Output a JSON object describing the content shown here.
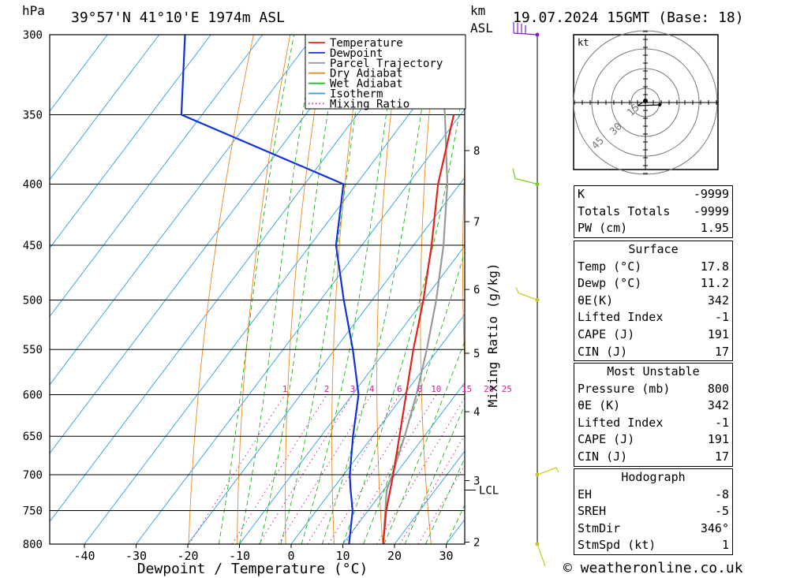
{
  "header": {
    "hpa_label": "hPa",
    "location": "39°57'N  41°10'E  1974m  ASL",
    "km_label": "km",
    "asl_label": "ASL",
    "datetime": "19.07.2024  15GMT  (Base: 18)"
  },
  "chart_data": {
    "type": "skew-t",
    "xlabel": "Dewpoint / Temperature (°C)",
    "ylabel": "hPa",
    "pressure_levels": [
      300,
      350,
      400,
      450,
      500,
      550,
      600,
      650,
      700,
      750,
      800
    ],
    "x_ticks": [
      -40,
      -30,
      -20,
      -10,
      0,
      10,
      20,
      30
    ],
    "km_ticks": [
      {
        "label": "8",
        "p": 375
      },
      {
        "label": "7",
        "p": 430
      },
      {
        "label": "6",
        "p": 490
      },
      {
        "label": "5",
        "p": 554
      },
      {
        "label": "4",
        "p": 620
      },
      {
        "label": "3",
        "p": 708
      },
      {
        "label": "2",
        "p": 797
      }
    ],
    "lcl": {
      "label": "LCL",
      "p": 721
    },
    "mixing_ratio_axis_label": "Mixing Ratio (g/kg)",
    "mixing_ratios": [
      {
        "label": "1",
        "v": 1
      },
      {
        "label": "2",
        "v": 2
      },
      {
        "label": "3",
        "v": 3
      },
      {
        "label": "4",
        "v": 4
      },
      {
        "label": "6",
        "v": 6
      },
      {
        "label": "8",
        "v": 8
      },
      {
        "label": "10",
        "v": 10
      },
      {
        "label": "15",
        "v": 15
      },
      {
        "label": "20",
        "v": 20
      },
      {
        "label": "25",
        "v": 25
      }
    ],
    "legend": {
      "placement": "top-right",
      "entries": [
        {
          "name": "Temperature",
          "color": "#e0221a",
          "style": "solid"
        },
        {
          "name": "Dewpoint",
          "color": "#1030d8",
          "style": "solid"
        },
        {
          "name": "Parcel Trajectory",
          "color": "#999999",
          "style": "solid"
        },
        {
          "name": "Dry Adiabat",
          "color": "#e88a20",
          "style": "solid"
        },
        {
          "name": "Wet Adiabat",
          "color": "#1ab51a",
          "style": "solid"
        },
        {
          "name": "Isotherm",
          "color": "#2a9ee0",
          "style": "solid"
        },
        {
          "name": "Mixing Ratio",
          "color": "#d0209a",
          "style": "dotted"
        }
      ]
    },
    "temperature": [
      {
        "p": 800,
        "t": 17.8
      },
      {
        "p": 750,
        "t": 13.5
      },
      {
        "p": 700,
        "t": 9.6
      },
      {
        "p": 650,
        "t": 5.2
      },
      {
        "p": 600,
        "t": 0.4
      },
      {
        "p": 550,
        "t": -4.8
      },
      {
        "p": 500,
        "t": -10.1
      },
      {
        "p": 450,
        "t": -16.5
      },
      {
        "p": 400,
        "t": -24.2
      },
      {
        "p": 350,
        "t": -31.3
      }
    ],
    "dewpoint": [
      {
        "p": 800,
        "t": 11.2
      },
      {
        "p": 750,
        "t": 7.0
      },
      {
        "p": 720,
        "t": 3.5
      },
      {
        "p": 700,
        "t": 1.2
      },
      {
        "p": 650,
        "t": -3.8
      },
      {
        "p": 600,
        "t": -8.8
      },
      {
        "p": 550,
        "t": -16.5
      },
      {
        "p": 500,
        "t": -25.5
      },
      {
        "p": 450,
        "t": -35.0
      },
      {
        "p": 400,
        "t": -42.5
      },
      {
        "p": 350,
        "t": -84.0
      },
      {
        "p": 300,
        "t": -95.0
      }
    ],
    "parcel": [
      {
        "p": 800,
        "t": 17.8
      },
      {
        "p": 721,
        "t": 10.6
      },
      {
        "p": 700,
        "t": 9.4
      },
      {
        "p": 650,
        "t": 6.2
      },
      {
        "p": 600,
        "t": 2.4
      },
      {
        "p": 550,
        "t": -2.2
      },
      {
        "p": 500,
        "t": -7.6
      },
      {
        "p": 450,
        "t": -14.2
      },
      {
        "p": 400,
        "t": -22.4
      },
      {
        "p": 350,
        "t": -33.0
      },
      {
        "p": 300,
        "t": -46.0
      }
    ],
    "wind_barbs": [
      {
        "p": 300,
        "color": "#7a1fd8"
      },
      {
        "p": 400,
        "color": "#7ac51a"
      },
      {
        "p": 500,
        "color": "#c8c81a"
      },
      {
        "p": 700,
        "color": "#c8c81a"
      },
      {
        "p": 800,
        "color": "#c8c81a"
      }
    ]
  },
  "hodograph": {
    "unit_label": "kt",
    "ring_labels": [
      "15",
      "30",
      "45"
    ]
  },
  "indices": {
    "k_label": "K",
    "k_value": "-9999",
    "tt_label": "Totals Totals",
    "tt_value": "-9999",
    "pw_label": "PW (cm)",
    "pw_value": "1.95"
  },
  "surface": {
    "title": "Surface",
    "temp_label": "Temp (°C)",
    "temp_value": "17.8",
    "dewp_label": "Dewp (°C)",
    "dewp_value": "11.2",
    "thetae_label": "θE(K)",
    "thetae_value": "342",
    "li_label": "Lifted Index",
    "li_value": "-1",
    "cape_label": "CAPE (J)",
    "cape_value": "191",
    "cin_label": "CIN (J)",
    "cin_value": "17"
  },
  "most_unstable": {
    "title": "Most Unstable",
    "pressure_label": "Pressure (mb)",
    "pressure_value": "800",
    "thetae_label": "θE (K)",
    "thetae_value": "342",
    "li_label": "Lifted Index",
    "li_value": "-1",
    "cape_label": "CAPE (J)",
    "cape_value": "191",
    "cin_label": "CIN (J)",
    "cin_value": "17"
  },
  "hodograph_table": {
    "title": "Hodograph",
    "eh_label": "EH",
    "eh_value": "-8",
    "sreh_label": "SREH",
    "sreh_value": "-5",
    "stmdir_label": "StmDir",
    "stmdir_value": "346°",
    "stmspd_label": "StmSpd (kt)",
    "stmspd_value": "1"
  },
  "footer": {
    "copyright": "© weatheronline.co.uk"
  }
}
